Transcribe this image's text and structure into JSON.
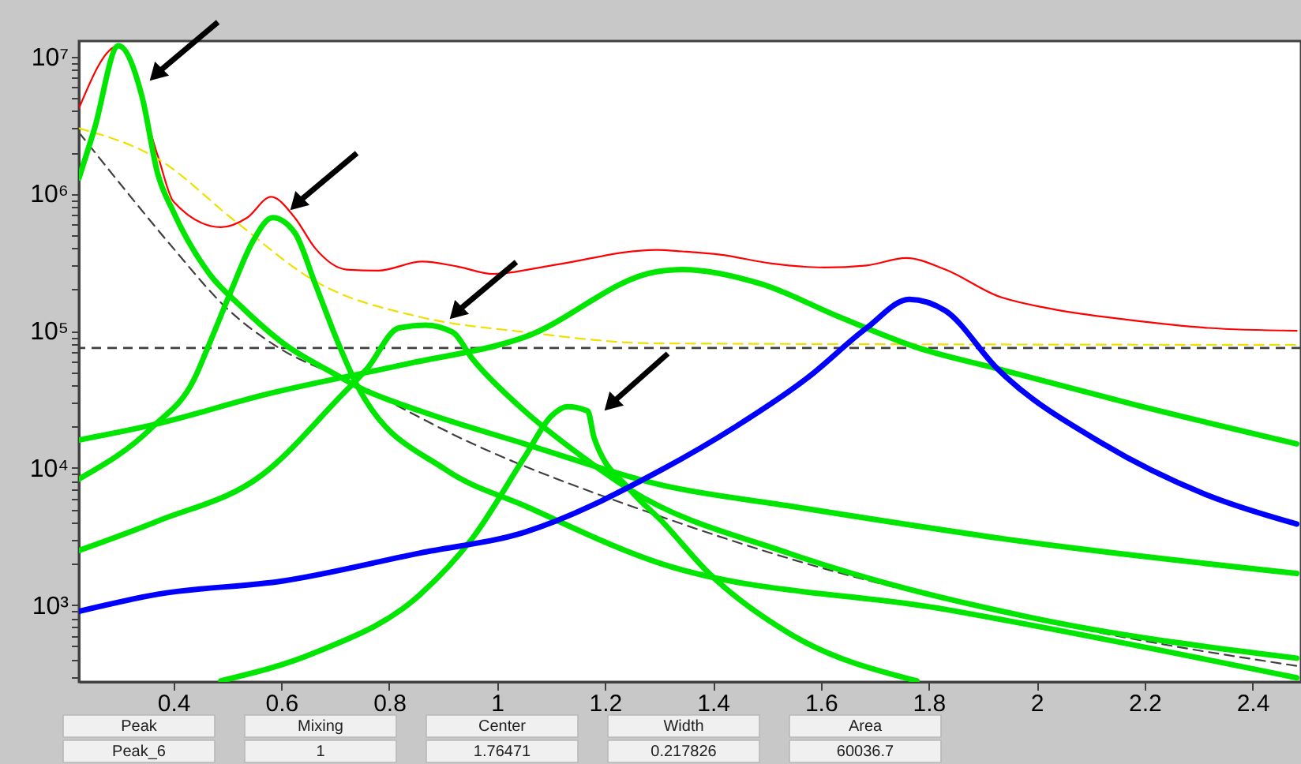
{
  "chart_data": {
    "type": "line",
    "log": true,
    "grid": false,
    "xlim": [
      0.225,
      2.49
    ],
    "ylim": [
      275,
      13000000
    ],
    "xticks": [
      0.4,
      0.6,
      0.8,
      1,
      1.2,
      1.4,
      1.6,
      1.8,
      2,
      2.2,
      2.4
    ],
    "yticks": [
      {
        "value": 300,
        "label": null
      },
      {
        "value": 400,
        "label": null
      },
      {
        "value": 500,
        "label": null
      },
      {
        "value": 600,
        "label": null
      },
      {
        "value": 700,
        "label": null
      },
      {
        "value": 800,
        "label": null
      },
      {
        "value": 900,
        "label": null
      },
      {
        "value": 1000,
        "label": "10³"
      },
      {
        "value": 2000,
        "label": null
      },
      {
        "value": 3000,
        "label": null
      },
      {
        "value": 4000,
        "label": null
      },
      {
        "value": 5000,
        "label": null
      },
      {
        "value": 6000,
        "label": null
      },
      {
        "value": 7000,
        "label": null
      },
      {
        "value": 8000,
        "label": null
      },
      {
        "value": 9000,
        "label": null
      },
      {
        "value": 10000,
        "label": "10⁴"
      },
      {
        "value": 20000,
        "label": null
      },
      {
        "value": 30000,
        "label": null
      },
      {
        "value": 40000,
        "label": null
      },
      {
        "value": 50000,
        "label": null
      },
      {
        "value": 60000,
        "label": null
      },
      {
        "value": 70000,
        "label": null
      },
      {
        "value": 80000,
        "label": null
      },
      {
        "value": 90000,
        "label": null
      },
      {
        "value": 100000,
        "label": "10⁵"
      },
      {
        "value": 200000,
        "label": null
      },
      {
        "value": 300000,
        "label": null
      },
      {
        "value": 400000,
        "label": null
      },
      {
        "value": 500000,
        "label": null
      },
      {
        "value": 600000,
        "label": null
      },
      {
        "value": 700000,
        "label": null
      },
      {
        "value": 800000,
        "label": null
      },
      {
        "value": 900000,
        "label": null
      },
      {
        "value": 1000000,
        "label": "10⁶"
      },
      {
        "value": 2000000,
        "label": null
      },
      {
        "value": 3000000,
        "label": null
      },
      {
        "value": 4000000,
        "label": null
      },
      {
        "value": 5000000,
        "label": null
      },
      {
        "value": 6000000,
        "label": null
      },
      {
        "value": 7000000,
        "label": null
      },
      {
        "value": 8000000,
        "label": null
      },
      {
        "value": 9000000,
        "label": null
      },
      {
        "value": 10000000,
        "label": "10⁷"
      }
    ],
    "series": [
      {
        "color": "#ff0000",
        "line_style": "solid",
        "x": [
          0.225,
          0.298,
          0.371,
          0.4,
          0.488,
          0.537,
          0.581,
          0.625,
          0.663,
          0.721,
          0.78,
          0.861,
          0.926,
          0.993,
          1.101,
          1.296,
          1.343,
          1.413,
          1.509,
          1.606,
          1.685,
          1.758,
          1.831,
          1.927,
          2.026,
          2.172,
          2.318,
          2.482
        ],
        "values": [
          4200000,
          12000000,
          1900000,
          880000,
          570000,
          670000,
          950000,
          670000,
          400000,
          280000,
          275000,
          320000,
          295000,
          260000,
          300000,
          390000,
          380000,
          360000,
          310000,
          290000,
          300000,
          340000,
          280000,
          180000,
          145000,
          120000,
          105000,
          100000
        ]
      },
      {
        "color": "#404040",
        "line_style": "dashed",
        "x": [
          0.225,
          0.312,
          0.4,
          0.496,
          0.596,
          0.721,
          0.955,
          1.305,
          1.539,
          1.927,
          2.219,
          2.482
        ],
        "values": [
          2800000,
          1050000,
          400000,
          150000,
          75000,
          44000,
          15000,
          4400,
          2200,
          900,
          530,
          360
        ]
      },
      {
        "color": "#f0e000",
        "line_style": "dashed",
        "x": [
          0.225,
          0.371,
          0.517,
          0.663,
          0.858,
          1.051,
          1.296,
          2.482
        ],
        "values": [
          3000000,
          1800000,
          620000,
          230000,
          126000,
          98000,
          81000,
          79000
        ]
      },
      {
        "color": "#00e600",
        "line_style": "solid",
        "x": [
          0.225,
          0.254,
          0.298,
          0.342,
          0.371,
          0.4,
          0.467,
          0.526,
          0.604,
          0.701,
          0.742,
          0.858,
          1.051,
          1.305,
          1.539,
          1.977,
          2.482
        ],
        "values": [
          1300000,
          3000000,
          12000000,
          5100000,
          1400000,
          740000,
          260000,
          150000,
          81000,
          48000,
          39000,
          26000,
          15000,
          7500,
          5300,
          2900,
          1700
        ]
      },
      {
        "color": "#00e600",
        "line_style": "solid",
        "x": [
          0.225,
          0.362,
          0.438,
          0.467,
          0.508,
          0.546,
          0.584,
          0.625,
          0.663,
          0.701,
          0.742,
          0.905,
          1.051,
          1.305,
          1.831,
          2.482
        ],
        "values": [
          8300,
          20000,
          44000,
          81000,
          200000,
          440000,
          670000,
          520000,
          220000,
          90000,
          39000,
          9700,
          5300,
          2000,
          930,
          295
        ]
      },
      {
        "color": "#00e600",
        "line_style": "solid",
        "x": [
          0.225,
          0.371,
          0.566,
          0.712,
          0.759,
          0.818,
          0.867,
          0.917,
          0.955,
          1.042,
          1.159,
          1.247,
          1.539,
          1.977,
          2.482
        ],
        "values": [
          2500,
          4100,
          9000,
          34000,
          53000,
          105000,
          110000,
          98000,
          62000,
          28000,
          12000,
          6900,
          2400,
          830,
          410
        ]
      },
      {
        "color": "#00e600",
        "line_style": "solid",
        "x": [
          0.488,
          0.663,
          0.858,
          0.955,
          1.051,
          1.101,
          1.13,
          1.168,
          1.18,
          1.247,
          1.305,
          1.393,
          1.539,
          1.778
        ],
        "values": [
          280,
          450,
          1200,
          3100,
          12000,
          24000,
          28000,
          26000,
          16500,
          6900,
          4100,
          1700,
          630,
          280
        ]
      },
      {
        "color": "#00e600",
        "line_style": "solid",
        "x": [
          0.225,
          0.371,
          0.566,
          0.829,
          1.051,
          1.296,
          1.343,
          1.489,
          1.635,
          1.781,
          1.927,
          2.181,
          2.482
        ],
        "values": [
          16000,
          21000,
          34000,
          57000,
          90000,
          270000,
          280000,
          220000,
          126000,
          75000,
          53000,
          29000,
          15000
        ]
      },
      {
        "color": "#0000ff",
        "line_style": "solid",
        "x": [
          0.225,
          0.371,
          0.604,
          0.858,
          1.051,
          1.305,
          1.442,
          1.577,
          1.685,
          1.764,
          1.831,
          1.927,
          2.123,
          2.318,
          2.482
        ],
        "values": [
          900,
          1200,
          1500,
          2400,
          3400,
          9700,
          20000,
          46000,
          105000,
          170000,
          140000,
          53000,
          15000,
          6300,
          3900
        ]
      }
    ],
    "ref_lines": [
      {
        "axis": "y",
        "value": 75000,
        "color": "#404040",
        "line_style": "dashed"
      }
    ],
    "annotations": [
      "Peak",
      "Mixing",
      "Center",
      "Width",
      "Area",
      "Peak_6",
      "1",
      "1.76471",
      "0.217826",
      "60036.7"
    ]
  }
}
